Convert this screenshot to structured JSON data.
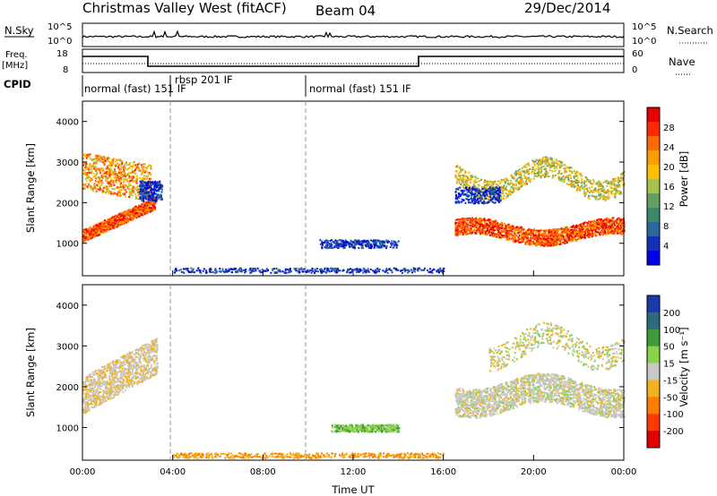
{
  "header": {
    "title": "Christmas Valley West (fitACF)",
    "beam": "Beam 04",
    "date": "29/Dec/2014"
  },
  "panels": {
    "nsky": {
      "left_label": "N.Sky",
      "right_label": "N.Search",
      "left_ticks": [
        "10^5",
        "10^0"
      ],
      "right_ticks": [
        "10^5",
        "10^0"
      ]
    },
    "freq": {
      "left_label_1": "Freq.",
      "left_label_2": "[MHz]",
      "right_label": "Nave",
      "left_ticks": [
        "18",
        "8"
      ],
      "right_ticks": [
        "60",
        "0"
      ]
    },
    "cpid": {
      "label": "CPID",
      "segments": [
        {
          "label": "normal (fast) 151 IF"
        },
        {
          "label": "rbsp 201 IF"
        },
        {
          "label": "normal (fast) 151 IF"
        }
      ]
    }
  },
  "chart_data": [
    {
      "type": "heatmap",
      "name": "power",
      "ylabel": "Slant Range [km]",
      "xlabel": "",
      "ylim": [
        200,
        4500
      ],
      "yticks": [
        "1000",
        "2000",
        "3000",
        "4000"
      ],
      "colorbar_label": "Power [dB]",
      "colorbar_ticks": [
        "28",
        "24",
        "20",
        "16",
        "12",
        "8",
        "4"
      ],
      "colorbar_colors": [
        "#e60000",
        "#ff2a00",
        "#ff6a00",
        "#ff9e00",
        "#ffc000",
        "#a6c24a",
        "#63a063",
        "#3a8a6a",
        "#2a6a9a",
        "#1030b8",
        "#0000e6"
      ]
    },
    {
      "type": "heatmap",
      "name": "velocity",
      "ylabel": "Slant Range [km]",
      "xlabel": "Time UT",
      "ylim": [
        200,
        4500
      ],
      "yticks": [
        "1000",
        "2000",
        "3000",
        "4000"
      ],
      "xticks": [
        "00:00",
        "04:00",
        "08:00",
        "12:00",
        "16:00",
        "20:00",
        "00:00"
      ],
      "colorbar_label": "Velocity [m s⁻¹]",
      "colorbar_ticks": [
        "200",
        "100",
        "50",
        "15",
        "-15",
        "-50",
        "-100",
        "-200"
      ],
      "colorbar_colors": [
        "#1a3aa8",
        "#2d6a7a",
        "#3f9a3a",
        "#8ad24a",
        "#c8c8c8",
        "#f2b21a",
        "#ff7e00",
        "#ff3a00",
        "#e00000"
      ]
    }
  ]
}
